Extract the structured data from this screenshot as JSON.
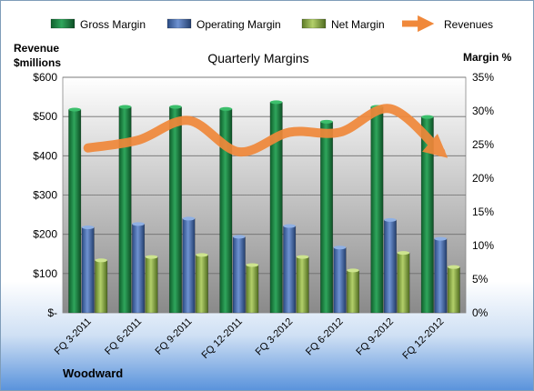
{
  "chart_data": {
    "type": "bar",
    "title": "Quarterly Margins",
    "left_axis_label_line1": "Revenue",
    "left_axis_label_line2": "$millions",
    "right_axis_label": "Margin %",
    "footer_label": "Woodward",
    "categories": [
      "FQ 3-2011",
      "FQ 6-2011",
      "FQ 9-2011",
      "FQ 12-2011",
      "FQ 3-2012",
      "FQ 6-2012",
      "FQ 9-2012",
      "FQ 12-2012"
    ],
    "left_ticks": [
      "$-",
      "$100",
      "$200",
      "$300",
      "$400",
      "$500",
      "$600"
    ],
    "right_ticks": [
      "0%",
      "5%",
      "10%",
      "15%",
      "20%",
      "25%",
      "30%",
      "35%"
    ],
    "ylim_left": [
      0,
      600
    ],
    "ylim_right": [
      0,
      35
    ],
    "grid": true,
    "legend_position": "top",
    "series": [
      {
        "name": "Gross Margin",
        "kind": "bar",
        "axis": "right",
        "color": "#1f8a4a",
        "values": [
          30.2,
          30.6,
          30.6,
          30.3,
          31.3,
          28.4,
          30.6,
          29.1
        ]
      },
      {
        "name": "Operating Margin",
        "kind": "bar",
        "axis": "right",
        "color": "#4a73b8",
        "values": [
          12.7,
          13.2,
          14.0,
          11.3,
          12.9,
          9.7,
          13.8,
          11.0
        ]
      },
      {
        "name": "Net Margin",
        "kind": "bar",
        "axis": "right",
        "color": "#8db04a",
        "values": [
          7.8,
          8.3,
          8.6,
          7.1,
          8.3,
          6.3,
          8.9,
          6.8
        ]
      },
      {
        "name": "Revenues",
        "kind": "line",
        "axis": "left",
        "color": "#f0883a",
        "values": [
          420,
          440,
          490,
          410,
          460,
          460,
          520,
          410
        ]
      }
    ]
  }
}
